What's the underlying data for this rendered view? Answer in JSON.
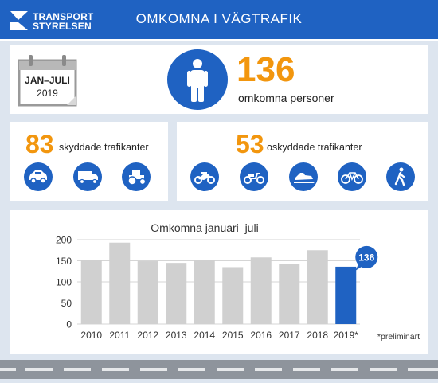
{
  "header": {
    "logo_line1": "TRANSPORT",
    "logo_line2": "STYRELSEN",
    "title": "OMKOMNA I VÄGTRAFIK"
  },
  "summary": {
    "calendar_month": "JAN–JULI",
    "calendar_year": "2019",
    "total_number": "136",
    "total_label": "omkomna personer",
    "person_icon": "person-icon"
  },
  "protected": {
    "number": "83",
    "label": "skyddade trafikanter",
    "icons": [
      "car-icon",
      "truck-icon",
      "tractor-icon"
    ]
  },
  "unprotected": {
    "number": "53",
    "label": "oskyddade trafikanter",
    "icons": [
      "motorcycle-icon",
      "moped-icon",
      "snowmobile-icon",
      "bicycle-icon",
      "pedestrian-icon"
    ]
  },
  "colors": {
    "brand_blue": "#1f62c2",
    "accent_orange": "#f2960e",
    "bar_grey": "#d0d0d0",
    "background": "#dde5ef"
  },
  "chart_data": {
    "type": "bar",
    "title": "Omkomna januari–juli",
    "categories": [
      "2010",
      "2011",
      "2012",
      "2013",
      "2014",
      "2015",
      "2016",
      "2017",
      "2018",
      "2019*"
    ],
    "values": [
      152,
      193,
      149,
      145,
      152,
      135,
      158,
      143,
      175,
      136
    ],
    "highlight_index": 9,
    "highlight_label": "136",
    "note": "*preliminärt",
    "ylim": [
      0,
      200
    ],
    "yticks": [
      0,
      50,
      100,
      150,
      200
    ],
    "grid": true
  }
}
